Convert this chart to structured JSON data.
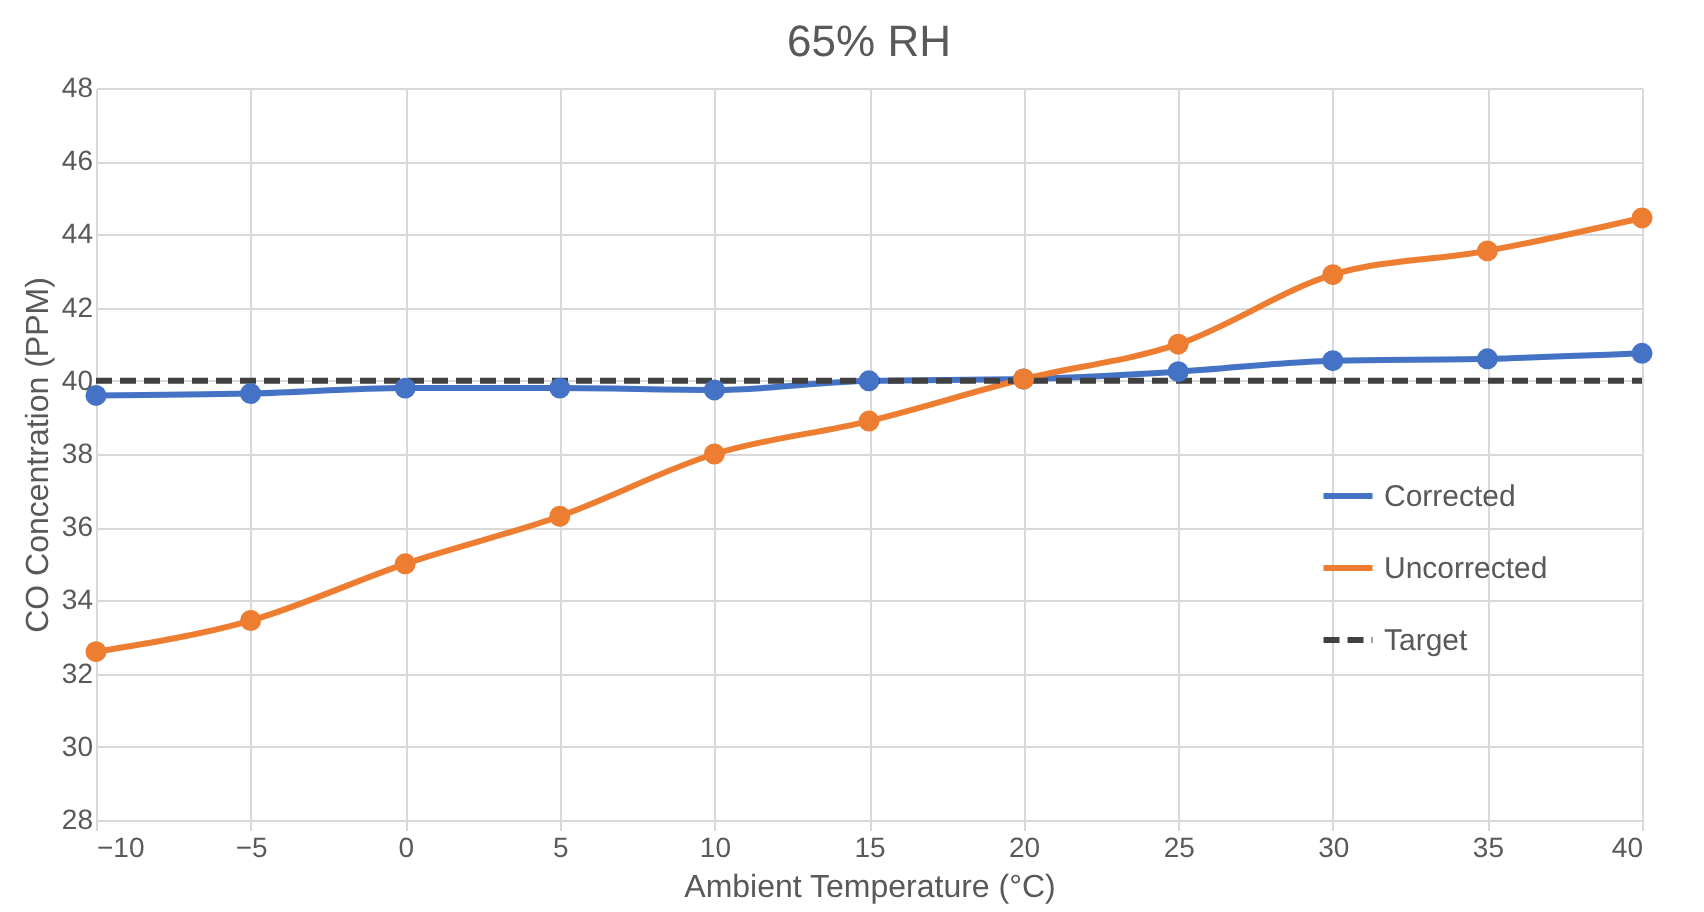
{
  "chart_data": {
    "type": "line",
    "title": "65% RH",
    "xlabel": "Ambient Temperature (°C)",
    "ylabel": "CO Concentration (PPM)",
    "x": [
      -10,
      -5,
      0,
      5,
      10,
      15,
      20,
      25,
      30,
      35,
      40
    ],
    "series": [
      {
        "name": "Corrected",
        "color": "#4472c4",
        "marker": "circle",
        "line_style": "solid",
        "values": [
          39.6,
          39.65,
          39.8,
          39.8,
          39.75,
          40.0,
          40.05,
          40.25,
          40.55,
          40.6,
          40.75
        ]
      },
      {
        "name": "Uncorrected",
        "color": "#ed7d31",
        "marker": "circle",
        "line_style": "solid",
        "values": [
          32.6,
          33.45,
          35.0,
          36.3,
          38.0,
          38.9,
          40.05,
          41.0,
          42.9,
          43.55,
          44.45
        ]
      },
      {
        "name": "Target",
        "color": "#404040",
        "marker": "none",
        "line_style": "dashed",
        "values": [
          40,
          40,
          40,
          40,
          40,
          40,
          40,
          40,
          40,
          40,
          40
        ]
      }
    ],
    "xlim": [
      -10,
      40
    ],
    "xticks": [
      -10,
      -5,
      0,
      5,
      10,
      15,
      20,
      25,
      30,
      35,
      40
    ],
    "ylim": [
      28,
      48
    ],
    "yticks": [
      28,
      30,
      32,
      34,
      36,
      38,
      40,
      42,
      44,
      46,
      48
    ],
    "grid": true,
    "legend": "right"
  }
}
